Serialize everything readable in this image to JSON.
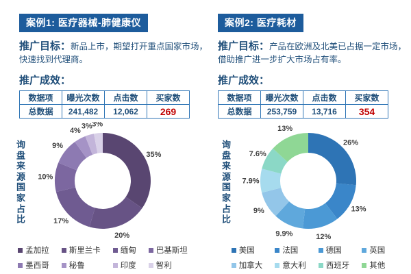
{
  "colors": {
    "header_badge_bg": "#1D5C9C",
    "header_badge_text": "#FFFFFF",
    "body_text_blue": "#1F4E79",
    "table_border_blue": "#2E74B5",
    "highlight_red": "#C00000",
    "percent_label_gray": "#3F3F3F"
  },
  "cases": [
    {
      "title": "案例1: 医疗器械-肺健康仪",
      "goal_label": "推广目标：",
      "goal_lines": [
        "新品上市，期望打开重点国家市场，",
        "快速找到代理商。"
      ],
      "results_label": "推广成效：",
      "table": {
        "headers": [
          "数据项",
          "曝光次数",
          "点击数",
          "买家数"
        ],
        "row": [
          "总数据",
          "241,482",
          "12,062",
          "269"
        ]
      }
    },
    {
      "title": "案例2: 医疗耗材",
      "goal_label": "推广目标：",
      "goal_lines": [
        "产品在欧洲及北美已占据一定市场，",
        "借助推广进一步扩大市场占有率。"
      ],
      "results_label": "推广成效：",
      "table": {
        "headers": [
          "数据项",
          "曝光次数",
          "点击数",
          "买家数"
        ],
        "row": [
          "总数据",
          "253,759",
          "13,716",
          "354"
        ]
      }
    }
  ],
  "chart_data": [
    {
      "type": "donut",
      "title": "询盘来源国家占比",
      "categories": [
        "孟加拉",
        "斯里兰卡",
        "缅甸",
        "巴基斯坦",
        "墨西哥",
        "秘鲁",
        "印度",
        "智利"
      ],
      "values": [
        35,
        20,
        17,
        10,
        9,
        4,
        3,
        3
      ],
      "labels": [
        "35%",
        "20%",
        "17%",
        "10%",
        "9%",
        "4%",
        "3%",
        "3%"
      ],
      "colors": [
        "#594671",
        "#675385",
        "#6F5B91",
        "#7C67A0",
        "#8D7AB2",
        "#A593C6",
        "#C3B5DA",
        "#D9D1E8"
      ],
      "start_angle_deg": 0,
      "direction": "clockwise",
      "inner_radius_ratio": 0.59,
      "legend_position": "bottom"
    },
    {
      "type": "donut",
      "title": "询盘来源国家占比",
      "categories": [
        "美国",
        "法国",
        "德国",
        "英国",
        "加拿大",
        "意大利",
        "西班牙",
        "其他"
      ],
      "values": [
        26,
        13,
        12,
        9.9,
        9,
        7.9,
        7.6,
        13
      ],
      "labels": [
        "26%",
        "13%",
        "12%",
        "9.9%",
        "9%",
        "7.9%",
        "7.6%",
        "13%"
      ],
      "colors": [
        "#2E74B5",
        "#3A86C9",
        "#4B99D5",
        "#5FA8DC",
        "#93C6E9",
        "#A6DBEE",
        "#8BD8C6",
        "#8FD795"
      ],
      "start_angle_deg": 0,
      "direction": "clockwise",
      "inner_radius_ratio": 0.59,
      "legend_position": "bottom"
    }
  ]
}
